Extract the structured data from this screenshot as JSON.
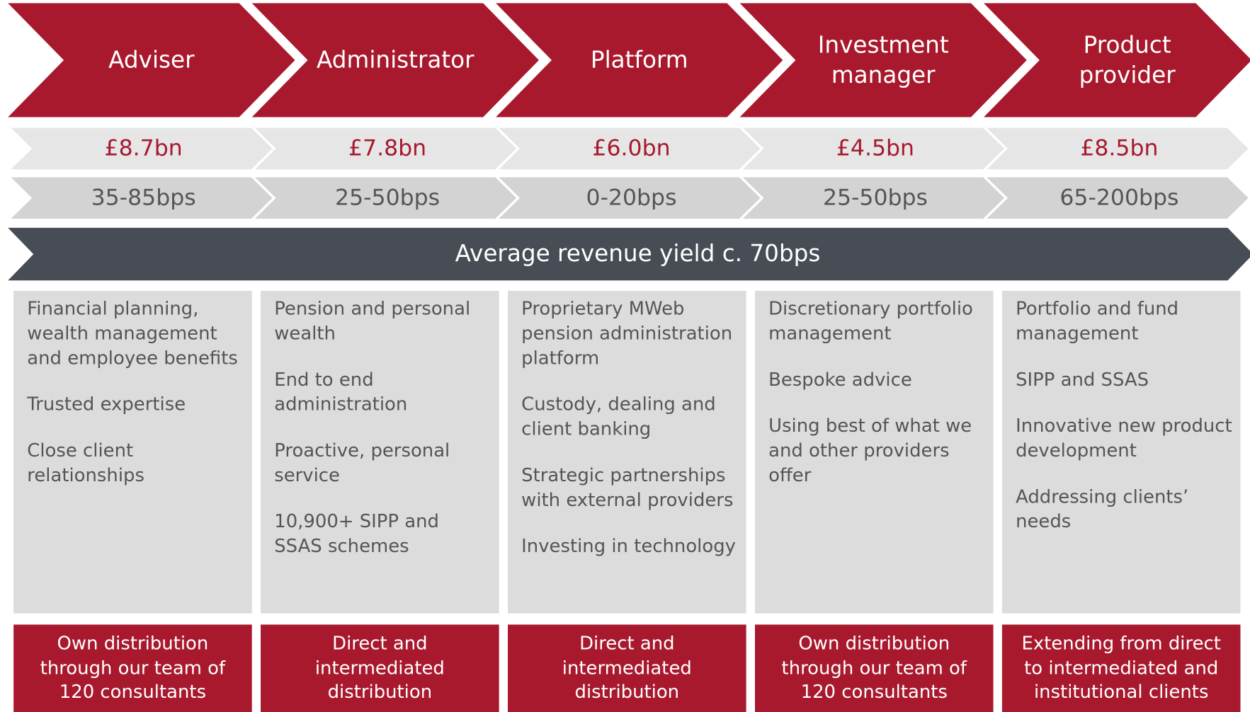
{
  "banner": "Average revenue yield c. 70bps",
  "columns": [
    {
      "title": "Adviser",
      "size": "£8.7bn",
      "yield": "35-85bps",
      "points": [
        "Financial planning, wealth management and employee benefits",
        "Trusted expertise",
        "Close client relationships"
      ],
      "distribution": "Own distribution through our team of 120 consultants"
    },
    {
      "title": "Administrator",
      "size": "£7.8bn",
      "yield": "25-50bps",
      "points": [
        "Pension and personal wealth",
        "End to end administration",
        "Proactive, personal service",
        "10,900+ SIPP and SSAS schemes"
      ],
      "distribution": "Direct and intermediated distribution"
    },
    {
      "title": "Platform",
      "size": "£6.0bn",
      "yield": "0-20bps",
      "points": [
        "Proprietary MWeb pension administration platform",
        "Custody, dealing and client banking",
        "Strategic partnerships with external providers",
        "Investing in technology"
      ],
      "distribution": "Direct and intermediated distribution"
    },
    {
      "title": "Investment manager",
      "size": "£4.5bn",
      "yield": "25-50bps",
      "points": [
        "Discretionary portfolio management",
        "Bespoke advice",
        "Using best of what we and other providers offer"
      ],
      "distribution": "Own distribution through our team of 120 consultants"
    },
    {
      "title": "Product provider",
      "size": "£8.5bn",
      "yield": "65-200bps",
      "points": [
        "Portfolio and fund management",
        "SIPP and SSAS",
        "Innovative new product development",
        "Addressing clients’ needs"
      ],
      "distribution": "Extending from direct to intermediated and institutional clients"
    }
  ]
}
